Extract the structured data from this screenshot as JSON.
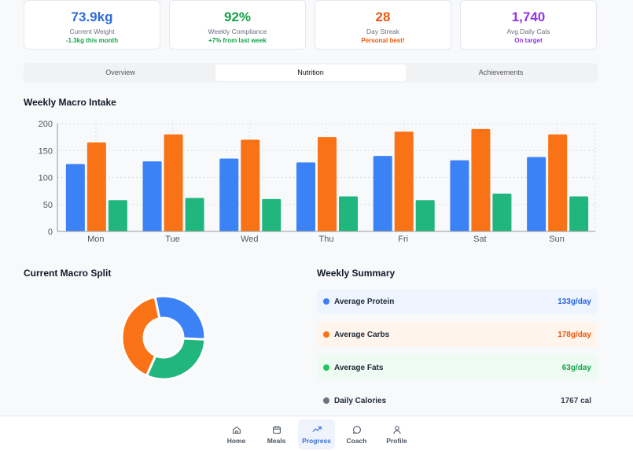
{
  "stats": [
    {
      "value": "73.9kg",
      "label": "Current Weight",
      "sub": "-1.3kg this month",
      "color": "#2f6bd8",
      "sub_color": "#16a34a"
    },
    {
      "value": "92%",
      "label": "Weekly Compliance",
      "sub": "+7% from last week",
      "color": "#16a34a",
      "sub_color": "#16a34a"
    },
    {
      "value": "28",
      "label": "Day Streak",
      "sub": "Personal best!",
      "color": "#ea580c",
      "sub_color": "#ea580c"
    },
    {
      "value": "1,740",
      "label": "Avg Daily Cals",
      "sub": "On target",
      "color": "#9333ea",
      "sub_color": "#9333ea"
    }
  ],
  "tabs": [
    {
      "label": "Overview"
    },
    {
      "label": "Nutrition",
      "active": true
    },
    {
      "label": "Achievements"
    }
  ],
  "weekly_title": "Weekly Macro Intake",
  "split_title": "Current Macro Split",
  "summary_title": "Weekly Summary",
  "summary": [
    {
      "label": "Average Protein",
      "value": "133g/day",
      "color": "#3b82f6",
      "bg": "#eff5ff",
      "text_color": "#2563eb"
    },
    {
      "label": "Average Carbs",
      "value": "178g/day",
      "color": "#f97316",
      "bg": "#fff5ec",
      "text_color": "#ea580c"
    },
    {
      "label": "Average Fats",
      "value": "63g/day",
      "color": "#22c55e",
      "bg": "#edfbf2",
      "text_color": "#16a34a"
    },
    {
      "label": "Daily Calories",
      "value": "1767 cal",
      "color": "#6b7280",
      "bg": "transparent",
      "text_color": "#374151"
    }
  ],
  "chart_data": [
    {
      "type": "bar",
      "categories": [
        "Mon",
        "Tue",
        "Wed",
        "Thu",
        "Fri",
        "Sat",
        "Sun"
      ],
      "ylim": [
        0,
        200
      ],
      "yticks": [
        "0",
        "50",
        "100",
        "150",
        "200"
      ],
      "grid": true,
      "series": [
        {
          "values": [
            125,
            130,
            135,
            128,
            140,
            132,
            138
          ],
          "color": "#3b82f6"
        },
        {
          "values": [
            165,
            180,
            170,
            175,
            185,
            190,
            180
          ],
          "color": "#f97316"
        },
        {
          "values": [
            58,
            62,
            60,
            65,
            58,
            70,
            65
          ],
          "color": "#22b67f"
        }
      ]
    },
    {
      "type": "pie",
      "donut": true,
      "slices": [
        {
          "value": 29,
          "color": "#3b82f6"
        },
        {
          "value": 31,
          "color": "#22b67f"
        },
        {
          "value": 40,
          "color": "#f97316"
        }
      ]
    }
  ],
  "nav": [
    {
      "label": "Home",
      "icon": "home-icon"
    },
    {
      "label": "Meals",
      "icon": "calendar-icon"
    },
    {
      "label": "Progress",
      "icon": "trending-up-icon",
      "active": true
    },
    {
      "label": "Coach",
      "icon": "chat-icon"
    },
    {
      "label": "Profile",
      "icon": "user-icon"
    }
  ]
}
